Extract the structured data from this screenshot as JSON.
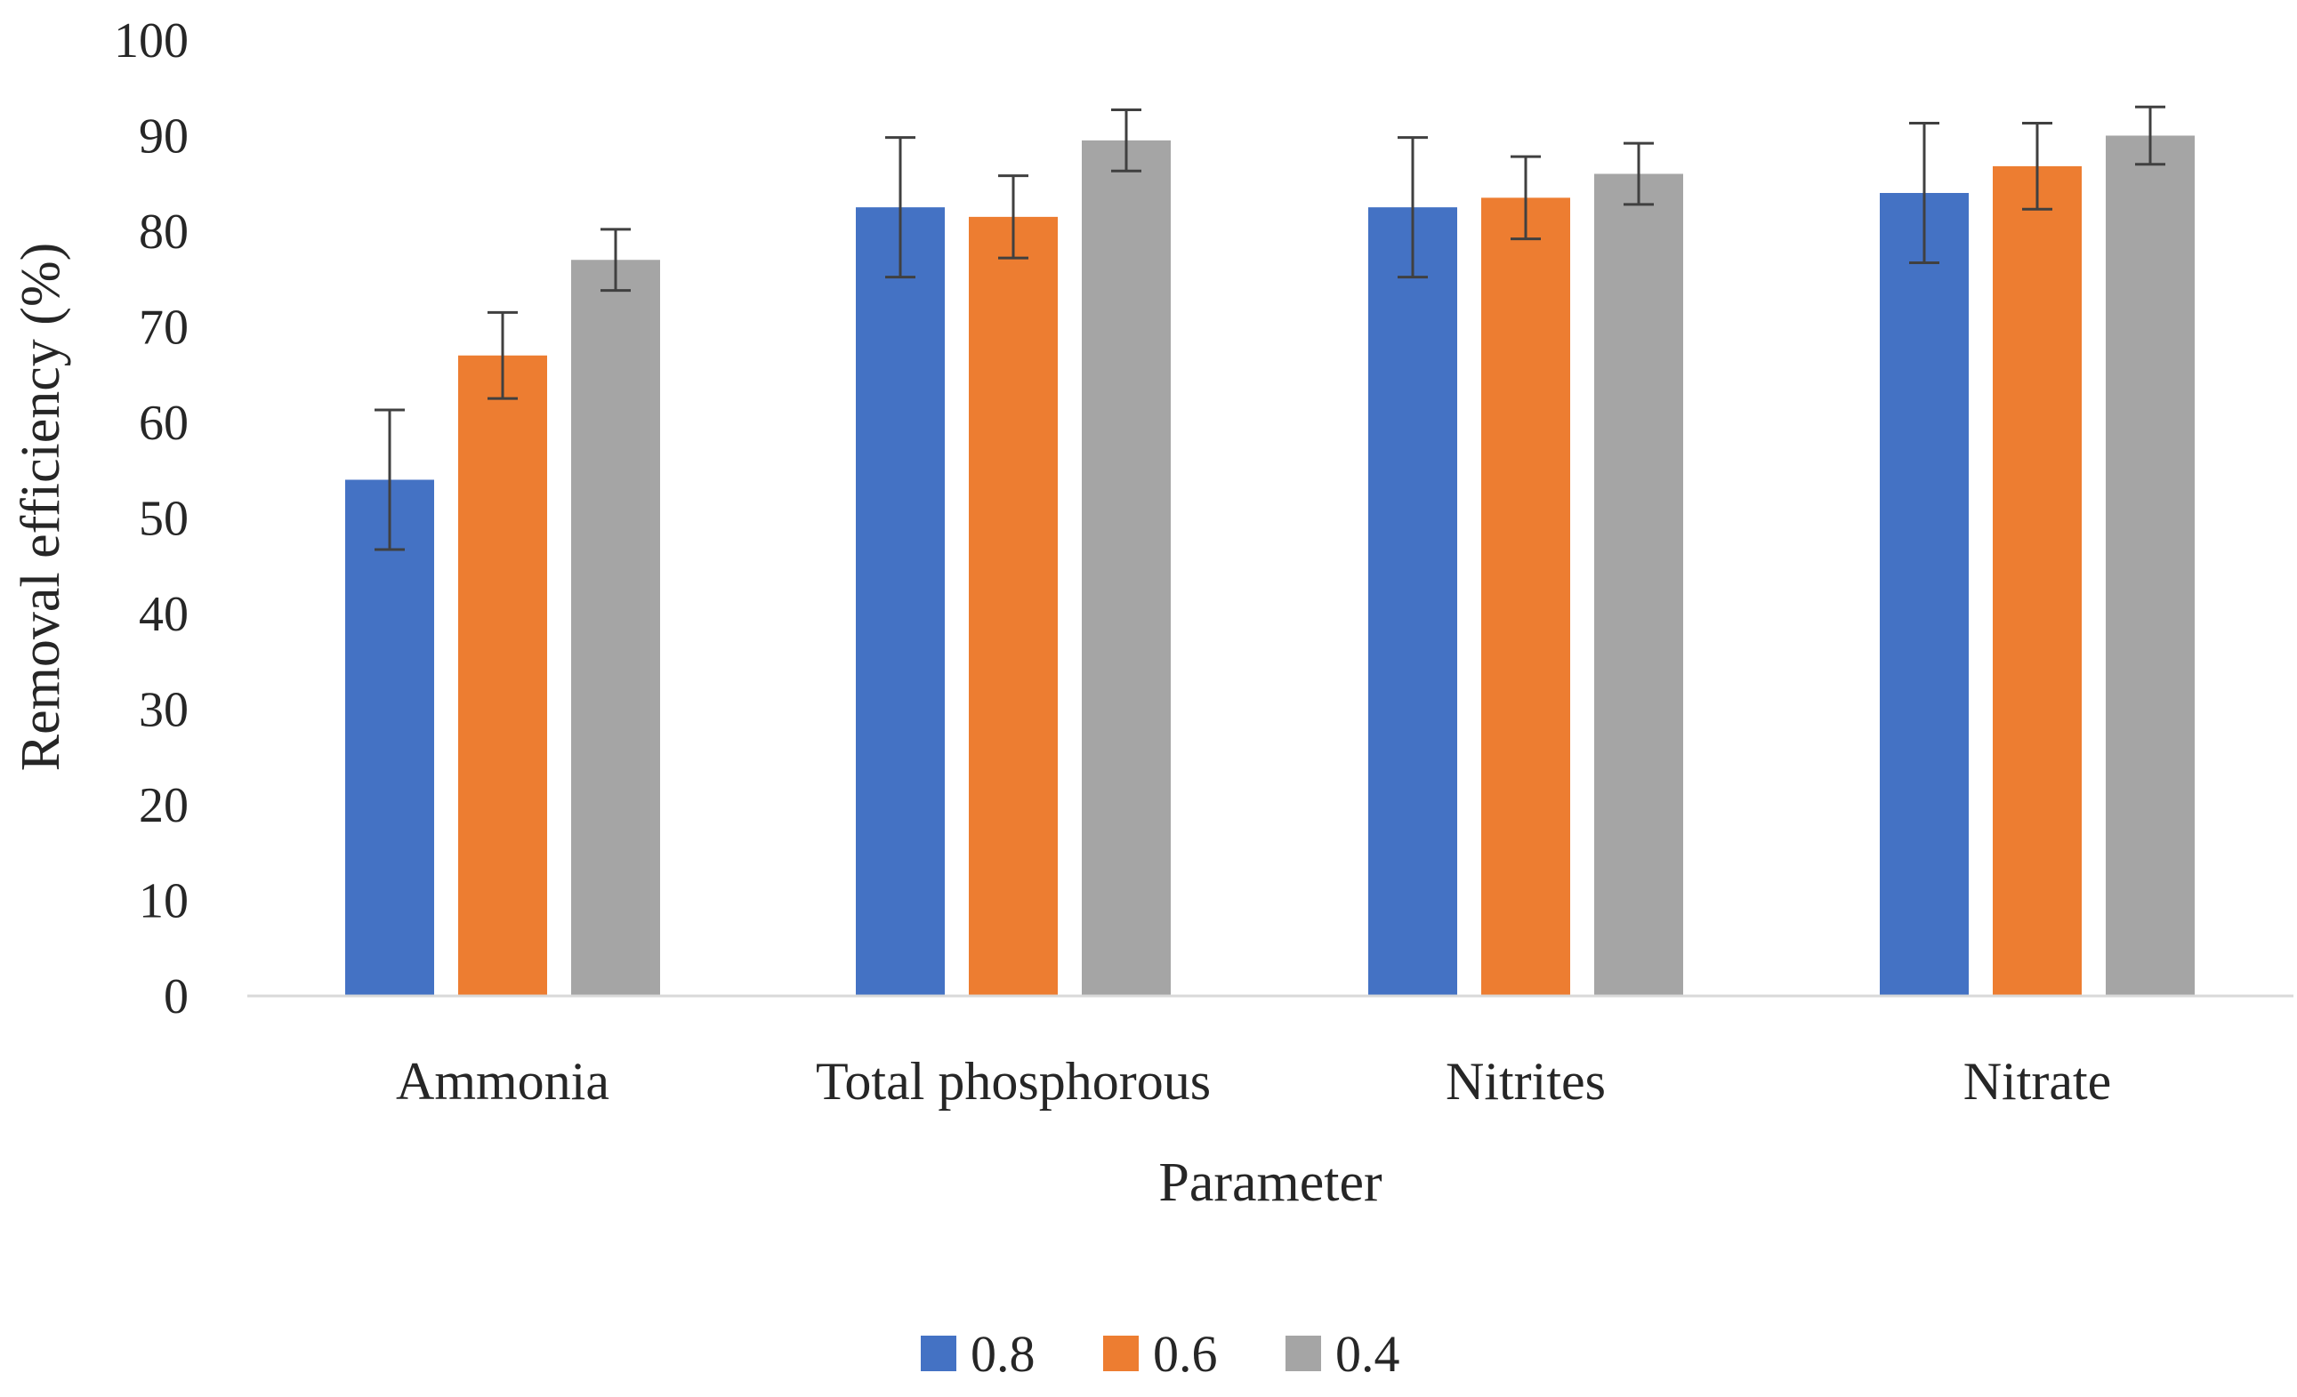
{
  "chart_data": {
    "type": "bar",
    "title": "",
    "xlabel": "Parameter",
    "ylabel": "Removal efficiency (%)",
    "ylim": [
      0,
      100
    ],
    "yticks": [
      0,
      10,
      20,
      30,
      40,
      50,
      60,
      70,
      80,
      90,
      100
    ],
    "grid": false,
    "legend_position": "bottom-center",
    "categories": [
      "Ammonia",
      "Total phosphorous",
      "Nitrites",
      "Nitrate"
    ],
    "series": [
      {
        "name": "0.8",
        "color": "#4472C4",
        "values": [
          54,
          82.5,
          82.5,
          84
        ],
        "errors": [
          7.3,
          7.3,
          7.3,
          7.3
        ]
      },
      {
        "name": "0.6",
        "color": "#ED7D31",
        "values": [
          67,
          81.5,
          83.5,
          86.8
        ],
        "errors": [
          4.5,
          4.3,
          4.3,
          4.5
        ]
      },
      {
        "name": "0.4",
        "color": "#A5A5A5",
        "values": [
          77,
          89.5,
          86,
          90
        ],
        "errors": [
          3.2,
          3.2,
          3.2,
          3.0
        ]
      }
    ]
  }
}
